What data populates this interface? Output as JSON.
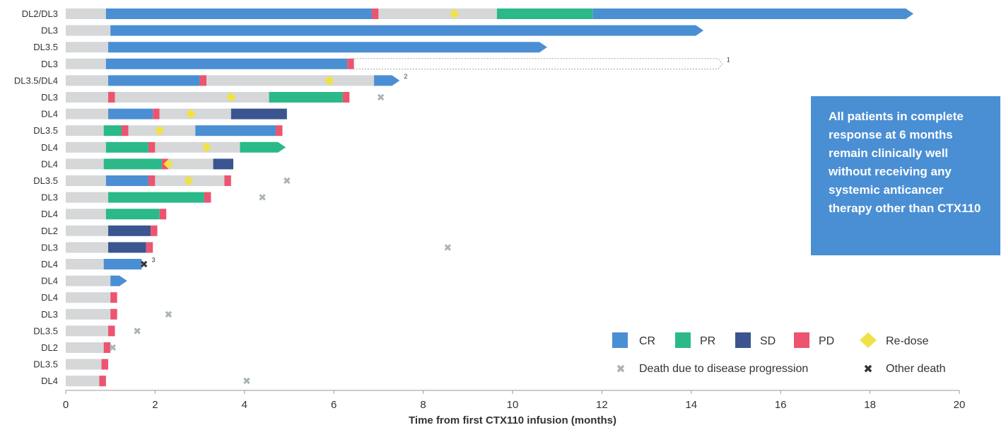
{
  "chart_data": {
    "type": "swimmer",
    "xlabel": "Time from first CTX110 infusion (months)",
    "xlim": [
      0,
      20
    ],
    "xticks": [
      0,
      2,
      4,
      6,
      8,
      10,
      12,
      14,
      16,
      18,
      20
    ],
    "colors": {
      "pre_response": "#d5d7d8",
      "CR": "#4a8fd4",
      "PR": "#2cb98a",
      "SD": "#3a5590",
      "PD": "#ec5470",
      "redose": "#f0e246",
      "death_pd": "#a8b4b8",
      "other_death": "#333333",
      "annotation_bg": "#4a8fd4"
    },
    "legend": {
      "CR": "CR",
      "PR": "PR",
      "SD": "SD",
      "PD": "PD",
      "redose": "Re-dose",
      "death_pd": "Death due to disease progression",
      "other_death": "Other death"
    },
    "annotation": "All patients in complete response at 6 months remain clinically well without receiving any systemic anticancer therapy other than CTX110",
    "patients": [
      {
        "dose": "DL2/DL3",
        "segments": [
          [
            0,
            0.9,
            "none"
          ],
          [
            0.9,
            6.85,
            "CR"
          ],
          [
            6.85,
            7.0,
            "PD"
          ],
          [
            7.0,
            9.65,
            "none"
          ],
          [
            9.65,
            11.8,
            "PR"
          ],
          [
            11.8,
            18.8,
            "CR"
          ]
        ],
        "arrow": "CR",
        "redose": [
          8.7
        ]
      },
      {
        "dose": "DL3",
        "segments": [
          [
            0,
            1.0,
            "none"
          ],
          [
            1.0,
            14.1,
            "CR"
          ]
        ],
        "arrow": "CR"
      },
      {
        "dose": "DL3.5",
        "segments": [
          [
            0,
            0.95,
            "none"
          ],
          [
            0.95,
            10.6,
            "CR"
          ]
        ],
        "arrow": "CR"
      },
      {
        "dose": "DL3",
        "segments": [
          [
            0,
            0.9,
            "none"
          ],
          [
            0.9,
            6.3,
            "CR"
          ],
          [
            6.3,
            6.45,
            "PD"
          ]
        ],
        "dotted_to": 14.6,
        "footnote": "1"
      },
      {
        "dose": "DL3.5/DL4",
        "segments": [
          [
            0,
            0.95,
            "none"
          ],
          [
            0.95,
            3.0,
            "CR"
          ],
          [
            3.0,
            3.15,
            "PD"
          ],
          [
            3.15,
            6.9,
            "none"
          ],
          [
            6.9,
            7.3,
            "CR"
          ]
        ],
        "arrow": "CR",
        "redose": [
          5.9
        ],
        "footnote": "2"
      },
      {
        "dose": "DL3",
        "segments": [
          [
            0,
            0.95,
            "none"
          ],
          [
            0.95,
            1.1,
            "PD"
          ],
          [
            1.1,
            4.55,
            "none"
          ],
          [
            4.55,
            6.2,
            "PR"
          ],
          [
            6.2,
            6.35,
            "PD"
          ]
        ],
        "redose": [
          3.7
        ],
        "death_pd": 7.05
      },
      {
        "dose": "DL4",
        "segments": [
          [
            0,
            0.95,
            "none"
          ],
          [
            0.95,
            1.95,
            "CR"
          ],
          [
            1.95,
            2.1,
            "PD"
          ],
          [
            2.1,
            3.7,
            "none"
          ],
          [
            3.7,
            4.95,
            "SD"
          ]
        ],
        "redose": [
          2.8
        ]
      },
      {
        "dose": "DL3.5",
        "segments": [
          [
            0,
            0.85,
            "none"
          ],
          [
            0.85,
            1.25,
            "PR"
          ],
          [
            1.25,
            1.4,
            "PD"
          ],
          [
            1.4,
            2.9,
            "none"
          ],
          [
            2.9,
            4.7,
            "CR"
          ],
          [
            4.7,
            4.85,
            "PD"
          ]
        ],
        "redose": [
          2.1
        ]
      },
      {
        "dose": "DL4",
        "segments": [
          [
            0,
            0.9,
            "none"
          ],
          [
            0.9,
            1.85,
            "PR"
          ],
          [
            1.85,
            2.0,
            "PD"
          ],
          [
            2.0,
            3.9,
            "none"
          ],
          [
            3.9,
            4.75,
            "PR"
          ]
        ],
        "arrow": "PR",
        "redose": [
          3.15
        ]
      },
      {
        "dose": "DL4",
        "segments": [
          [
            0,
            0.85,
            "none"
          ],
          [
            0.85,
            2.15,
            "PR"
          ],
          [
            2.15,
            2.3,
            "PD"
          ],
          [
            2.3,
            3.3,
            "none"
          ],
          [
            3.3,
            3.75,
            "SD"
          ]
        ],
        "redose": [
          2.3
        ]
      },
      {
        "dose": "DL3.5",
        "segments": [
          [
            0,
            0.9,
            "none"
          ],
          [
            0.9,
            1.85,
            "CR"
          ],
          [
            1.85,
            2.0,
            "PD"
          ],
          [
            2.0,
            3.55,
            "none"
          ],
          [
            3.55,
            3.7,
            "PD"
          ]
        ],
        "redose": [
          2.75
        ],
        "death_pd": 4.95
      },
      {
        "dose": "DL3",
        "segments": [
          [
            0,
            0.95,
            "none"
          ],
          [
            0.95,
            3.1,
            "PR"
          ],
          [
            3.1,
            3.25,
            "PD"
          ]
        ],
        "death_pd": 4.4
      },
      {
        "dose": "DL4",
        "segments": [
          [
            0,
            0.9,
            "none"
          ],
          [
            0.9,
            2.1,
            "PR"
          ],
          [
            2.1,
            2.25,
            "PD"
          ]
        ]
      },
      {
        "dose": "DL2",
        "segments": [
          [
            0,
            0.95,
            "none"
          ],
          [
            0.95,
            1.9,
            "SD"
          ],
          [
            1.9,
            2.05,
            "PD"
          ]
        ]
      },
      {
        "dose": "DL3",
        "segments": [
          [
            0,
            0.95,
            "none"
          ],
          [
            0.95,
            1.8,
            "SD"
          ],
          [
            1.8,
            1.95,
            "PD"
          ]
        ],
        "death_pd": 8.55
      },
      {
        "dose": "DL4",
        "segments": [
          [
            0,
            0.85,
            "none"
          ],
          [
            0.85,
            1.7,
            "CR"
          ]
        ],
        "other_death": 1.75,
        "footnote": "3"
      },
      {
        "dose": "DL4",
        "segments": [
          [
            0,
            1.0,
            "none"
          ],
          [
            1.0,
            1.2,
            "CR"
          ]
        ],
        "arrow": "CR"
      },
      {
        "dose": "DL4",
        "segments": [
          [
            0,
            1.0,
            "none"
          ],
          [
            1.0,
            1.15,
            "PD"
          ]
        ]
      },
      {
        "dose": "DL3",
        "segments": [
          [
            0,
            1.0,
            "none"
          ],
          [
            1.0,
            1.15,
            "PD"
          ]
        ],
        "death_pd": 2.3
      },
      {
        "dose": "DL3.5",
        "segments": [
          [
            0,
            0.95,
            "none"
          ],
          [
            0.95,
            1.1,
            "PD"
          ]
        ],
        "death_pd": 1.6
      },
      {
        "dose": "DL2",
        "segments": [
          [
            0,
            0.85,
            "none"
          ],
          [
            0.85,
            1.0,
            "PD"
          ]
        ],
        "death_pd": 1.05
      },
      {
        "dose": "DL3.5",
        "segments": [
          [
            0,
            0.8,
            "none"
          ],
          [
            0.8,
            0.95,
            "PD"
          ]
        ]
      },
      {
        "dose": "DL4",
        "segments": [
          [
            0,
            0.75,
            "none"
          ],
          [
            0.75,
            0.9,
            "PD"
          ]
        ],
        "death_pd": 4.05
      }
    ]
  }
}
